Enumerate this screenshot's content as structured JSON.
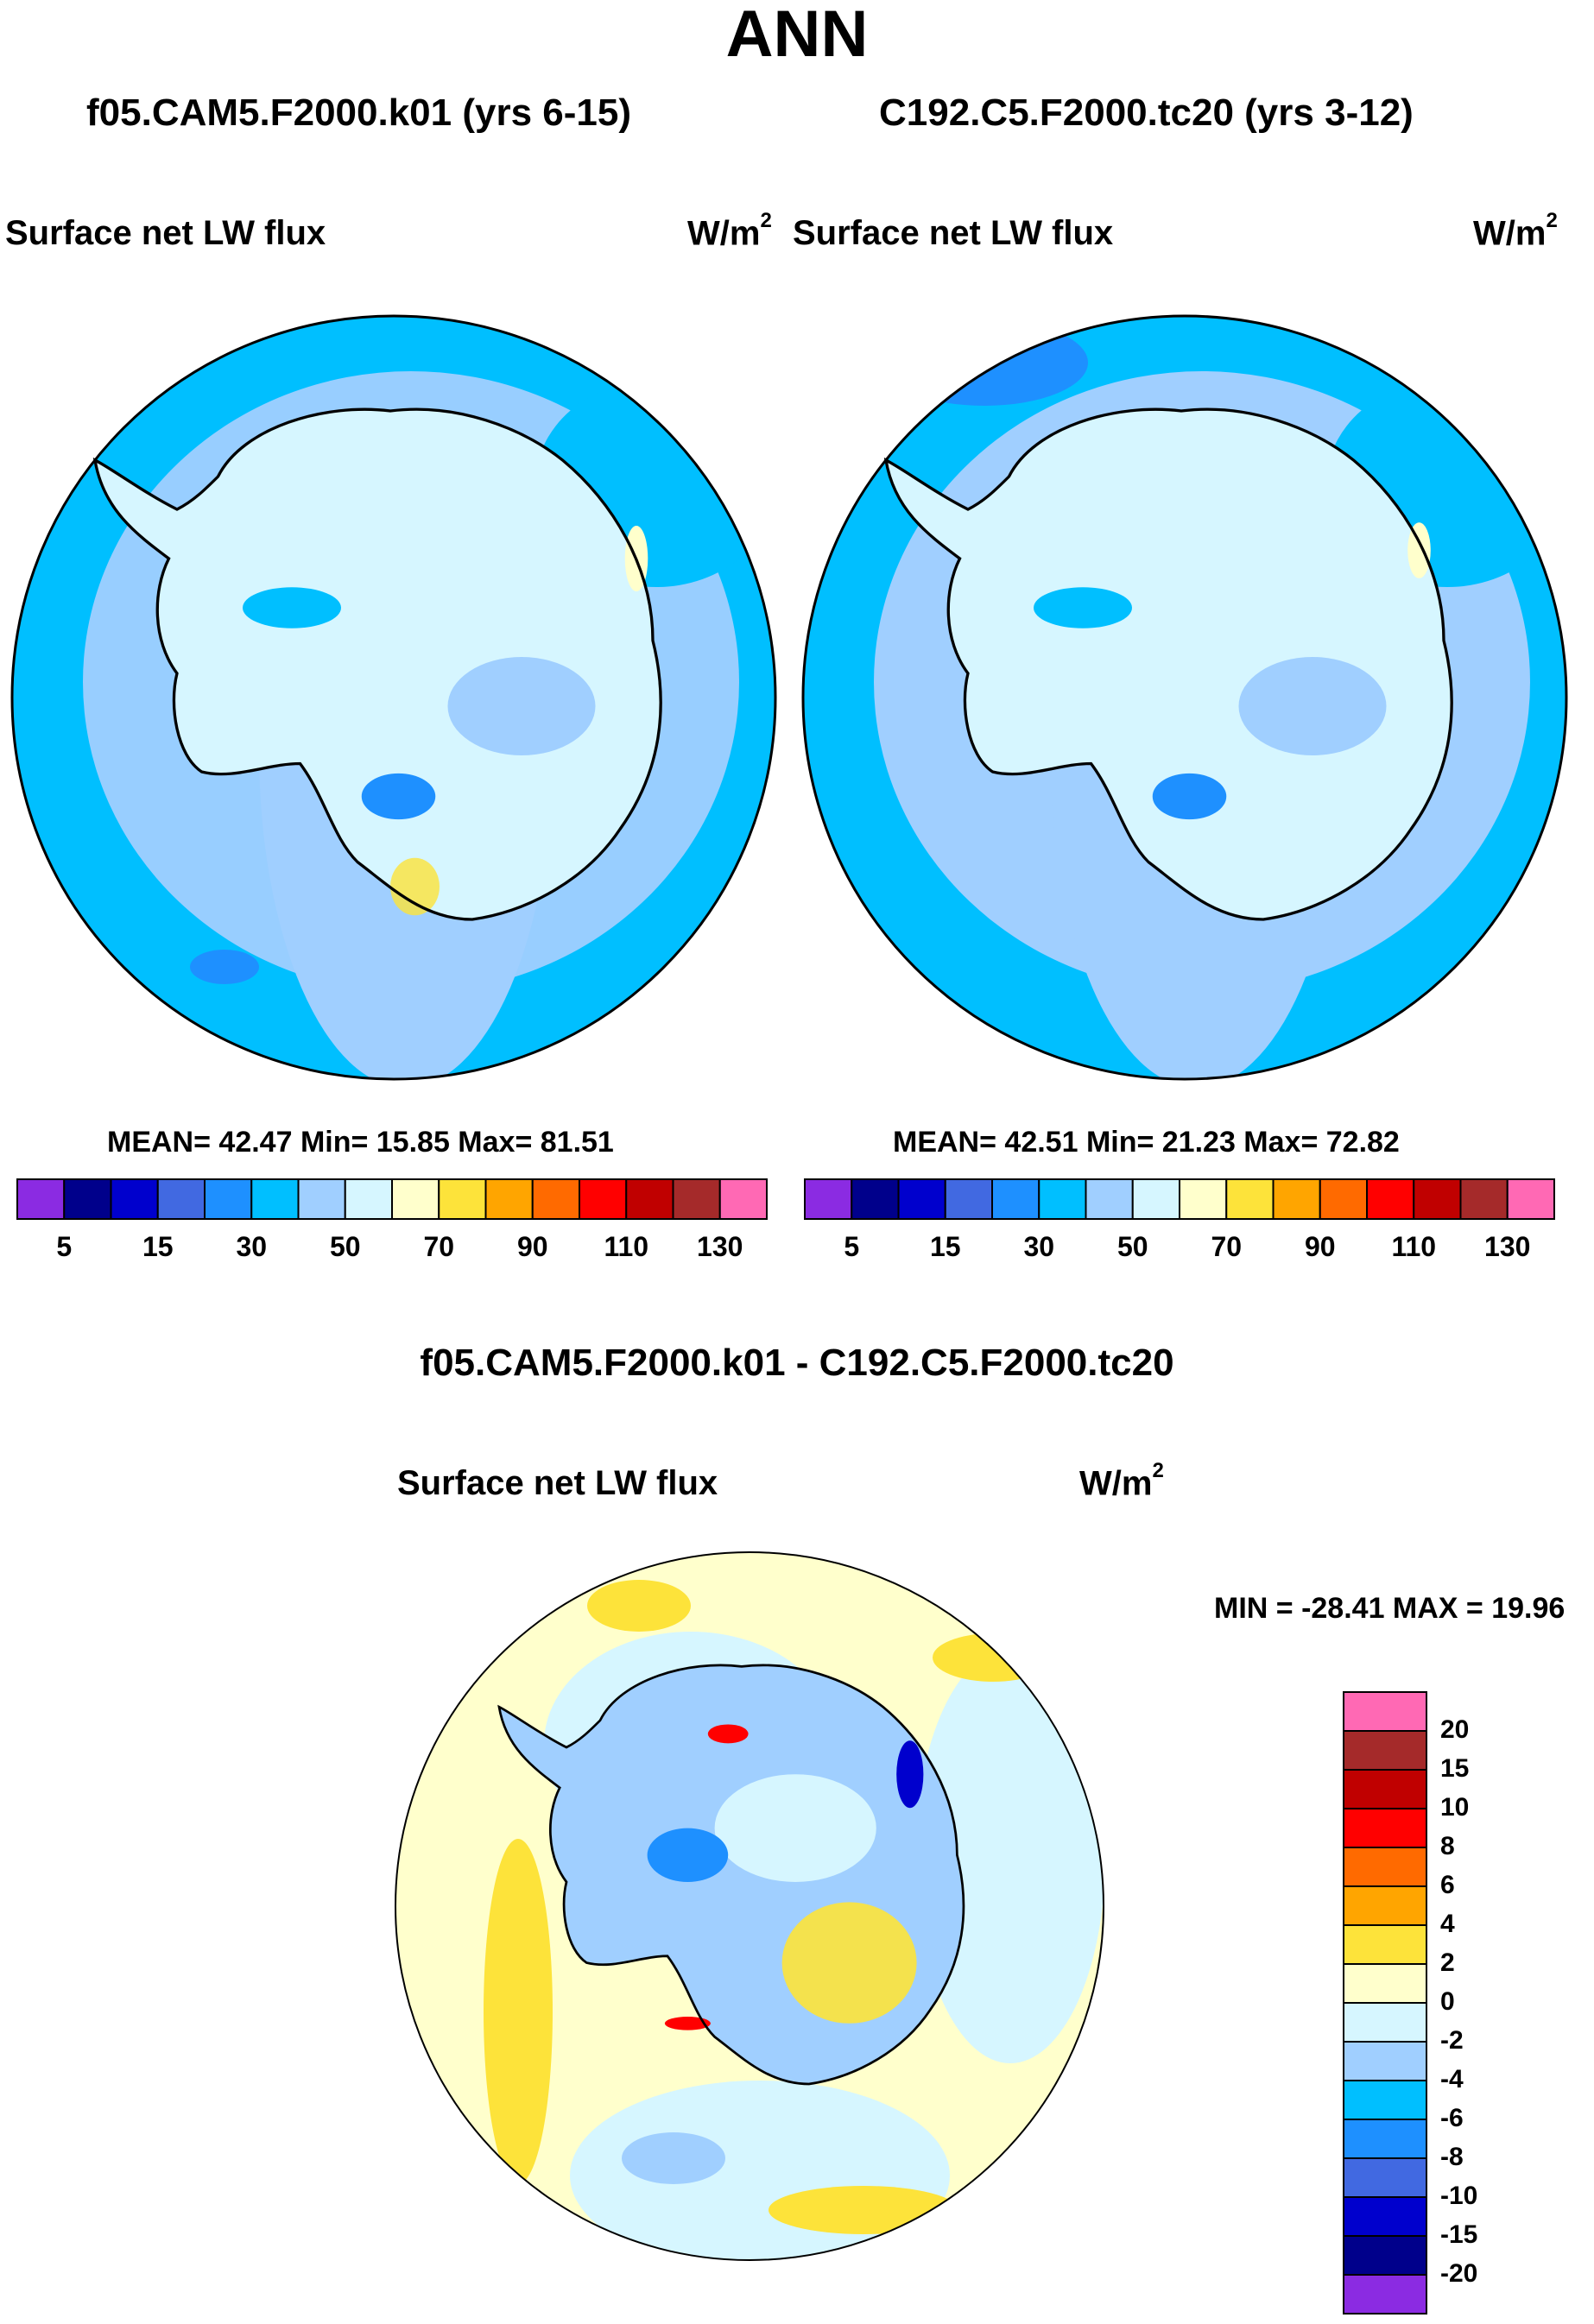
{
  "title": "ANN",
  "panels": [
    {
      "case": "f05.CAM5.F2000.k01 (yrs 6-15)",
      "variable": "Surface net LW flux",
      "units": "W/m",
      "units_exp": "2",
      "stats": "MEAN=  42.47  Min=  15.85  Max=  81.51"
    },
    {
      "case": "C192.C5.F2000.tc20 (yrs 3-12)",
      "variable": "Surface net LW flux",
      "units": "W/m",
      "units_exp": "2",
      "stats": "MEAN=  42.51  Min=  21.23  Max=  72.82"
    }
  ],
  "diff_panel": {
    "case": "f05.CAM5.F2000.k01 - C192.C5.F2000.tc20",
    "variable": "Surface net LW flux",
    "units": "W/m",
    "units_exp": "2",
    "minmax": "MIN = -28.41 MAX =  19.96"
  },
  "colors": {
    "sequential": [
      "#8b2be2",
      "#00008b",
      "#0000cd",
      "#4169e1",
      "#1e90ff",
      "#00bfff",
      "#a0cfff",
      "#d6f6ff",
      "#ffffcc",
      "#fde33a",
      "#ffa500",
      "#ff6a00",
      "#ff0000",
      "#c00000",
      "#a52a2a",
      "#ff69b4"
    ],
    "diverging": [
      "#8b2be2",
      "#00008b",
      "#0000cd",
      "#4169e1",
      "#1e90ff",
      "#00bfff",
      "#a0cfff",
      "#d6f6ff",
      "#ffffcc",
      "#fde33a",
      "#ffa500",
      "#ff6a00",
      "#ff0000",
      "#c00000",
      "#a52a2a",
      "#ff69b4"
    ],
    "ocean": "#00bfff",
    "antarctic": "#d6f6ff"
  },
  "chart_data": [
    {
      "type": "heatmap",
      "projection": "south-polar-stereographic",
      "title": "f05.CAM5.F2000.k01 (yrs 6-15)",
      "variable": "Surface net LW flux",
      "units": "W/m2",
      "mean": 42.47,
      "min": 15.85,
      "max": 81.51,
      "colorbar_levels": [
        5,
        10,
        15,
        20,
        30,
        40,
        50,
        60,
        70,
        80,
        90,
        100,
        110,
        120,
        130
      ],
      "colorbar_labels": [
        "5",
        "15",
        "30",
        "50",
        "70",
        "90",
        "110",
        "130"
      ]
    },
    {
      "type": "heatmap",
      "projection": "south-polar-stereographic",
      "title": "C192.C5.F2000.tc20 (yrs 3-12)",
      "variable": "Surface net LW flux",
      "units": "W/m2",
      "mean": 42.51,
      "min": 21.23,
      "max": 72.82,
      "colorbar_levels": [
        5,
        10,
        15,
        20,
        30,
        40,
        50,
        60,
        70,
        80,
        90,
        100,
        110,
        120,
        130
      ],
      "colorbar_labels": [
        "5",
        "15",
        "30",
        "50",
        "70",
        "90",
        "110",
        "130"
      ]
    },
    {
      "type": "heatmap",
      "projection": "south-polar-stereographic",
      "title": "f05.CAM5.F2000.k01 - C192.C5.F2000.tc20",
      "variable": "Surface net LW flux",
      "units": "W/m2",
      "min": -28.41,
      "max": 19.96,
      "colorbar_levels": [
        -20,
        -15,
        -10,
        -8,
        -6,
        -4,
        -2,
        0,
        2,
        4,
        6,
        8,
        10,
        15,
        20
      ],
      "colorbar_labels": [
        "20",
        "15",
        "10",
        "8",
        "6",
        "4",
        "2",
        "0",
        "-2",
        "-4",
        "-6",
        "-8",
        "-10",
        "-15",
        "-20"
      ]
    }
  ]
}
